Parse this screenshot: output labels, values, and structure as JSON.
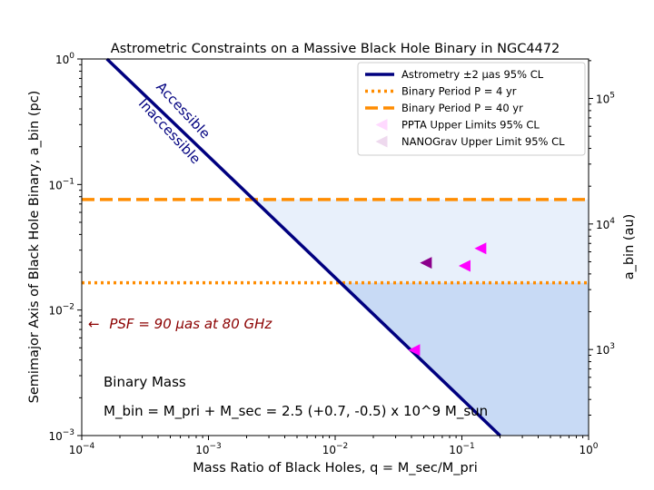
{
  "chart_data": {
    "type": "line",
    "title": "Astrometric Constraints on a Massive Black Hole Binary in NGC4472",
    "xlabel": "Mass Ratio of Black Holes, q = M_sec/M_pri",
    "ylabel": "Semimajor Axis of Black Hole Binary, a_bin (pc)",
    "ylabel_right": "a_bin (au)",
    "xscale": "log",
    "yscale": "log",
    "xlim": [
      0.0001,
      1
    ],
    "ylim": [
      0.001,
      1
    ],
    "x_ticks": [
      0.0001,
      0.001,
      0.01,
      0.1,
      1
    ],
    "x_tick_labels": [
      "10^-4",
      "10^-3",
      "10^-2",
      "10^-1",
      "10^0"
    ],
    "y_ticks": [
      0.001,
      0.01,
      0.1,
      1
    ],
    "y_tick_labels": [
      "10^-3",
      "10^-2",
      "10^-1",
      "10^0"
    ],
    "y_right_ticks_au": [
      1000,
      10000,
      100000
    ],
    "y_right_tick_labels": [
      "10^3",
      "10^4",
      "10^5"
    ],
    "au_per_pc": 206265,
    "series": [
      {
        "name": "Astrometry ±2 μas 95% CL",
        "kind": "line",
        "style": "solid",
        "color": "#00007f",
        "x": [
          0.000158,
          0.2
        ],
        "y": [
          1.0,
          0.001
        ]
      },
      {
        "name": "Binary Period P = 4 yr",
        "kind": "hline",
        "style": "dotted",
        "color": "#ff8c00",
        "y": 0.0165
      },
      {
        "name": "Binary Period P = 40 yr",
        "kind": "hline",
        "style": "dashed",
        "color": "#ff8c00",
        "y": 0.076
      },
      {
        "name": "PPTA Upper Limits 95% CL",
        "kind": "marker",
        "marker": "left-triangle",
        "color": "#ff00ff",
        "x": [
          0.042,
          0.105,
          0.14
        ],
        "y": [
          0.0048,
          0.0225,
          0.031
        ]
      },
      {
        "name": "NANOGrav Upper Limit 95% CL",
        "kind": "marker",
        "marker": "left-triangle",
        "color": "#8b008b",
        "x": [
          0.052
        ],
        "y": [
          0.0238
        ]
      }
    ],
    "regions": [
      {
        "name": "accessible-below-P40yr",
        "color": "#e8f0fb",
        "y_top": 0.076
      },
      {
        "name": "accessible-below-P4yr",
        "color": "#c8daf5",
        "y_top": 0.0165
      }
    ],
    "annotations": {
      "accessible": "Accessible",
      "inaccessible": "Inaccessible",
      "psf_arrow": "←",
      "psf_text": "PSF = 90 μas at 80 GHz",
      "binary_mass_title": "Binary Mass",
      "binary_mass_formula": "M_bin = M_pri + M_sec = 2.5 (+0.7, -0.5) x 10^9 M_sun"
    },
    "legend_position": "top-right",
    "grid": false
  }
}
